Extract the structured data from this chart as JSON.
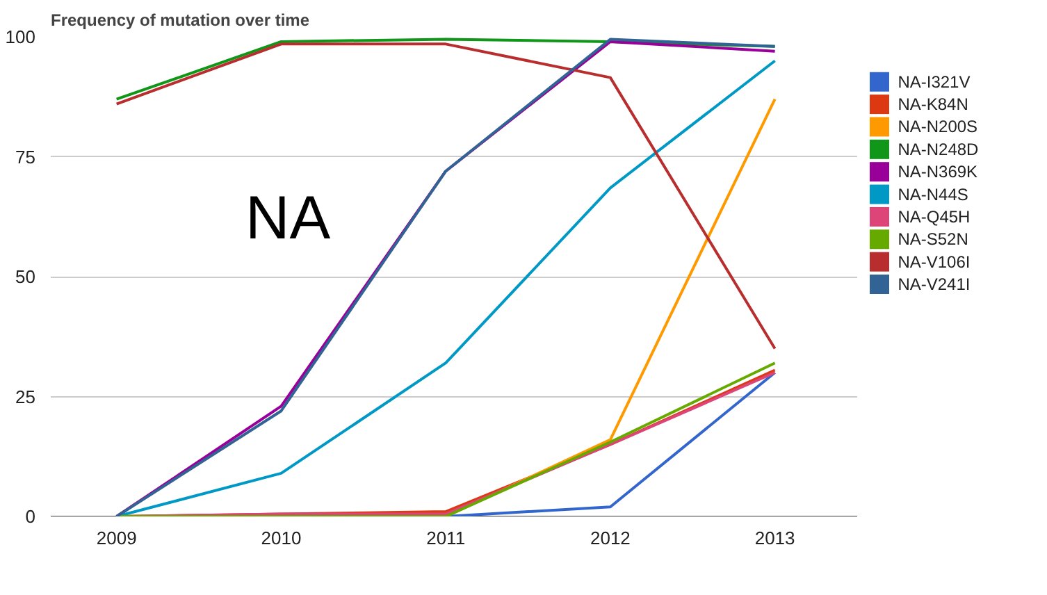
{
  "chart_data": {
    "type": "line",
    "title": "Frequency of mutation over time",
    "x": [
      2009,
      2010,
      2011,
      2012,
      2013
    ],
    "xlim": [
      2008.6,
      2013.5
    ],
    "xticks": [
      2009,
      2010,
      2011,
      2012,
      2013
    ],
    "ylim": [
      0,
      100
    ],
    "yticks": [
      0,
      25,
      50,
      75,
      100
    ],
    "grid": "y",
    "legend": "right",
    "annotations": [
      "NA"
    ],
    "series": [
      {
        "name": "NA-I321V",
        "color": "#3366cc",
        "values": [
          0,
          0,
          0,
          2,
          30
        ]
      },
      {
        "name": "NA-K84N",
        "color": "#dc3912",
        "values": [
          0,
          0.5,
          1,
          15,
          30.5
        ]
      },
      {
        "name": "NA-N200S",
        "color": "#ff9900",
        "values": [
          0,
          0,
          0,
          16,
          87
        ]
      },
      {
        "name": "NA-N248D",
        "color": "#109618",
        "values": [
          87,
          99,
          99.5,
          99,
          98
        ]
      },
      {
        "name": "NA-N369K",
        "color": "#990099",
        "values": [
          0,
          23,
          72,
          99,
          97
        ]
      },
      {
        "name": "NA-N44S",
        "color": "#0099c6",
        "values": [
          0,
          9,
          32,
          68.5,
          95
        ]
      },
      {
        "name": "NA-Q45H",
        "color": "#dd4477",
        "values": [
          0,
          0.5,
          0.5,
          15,
          30
        ]
      },
      {
        "name": "NA-S52N",
        "color": "#66aa00",
        "values": [
          0,
          0,
          0,
          15.5,
          32
        ]
      },
      {
        "name": "NA-V106I",
        "color": "#b82e2e",
        "values": [
          86,
          98.5,
          98.5,
          91.5,
          35
        ]
      },
      {
        "name": "NA-V241I",
        "color": "#316395",
        "values": [
          0,
          22,
          72,
          99.5,
          98
        ]
      }
    ]
  }
}
